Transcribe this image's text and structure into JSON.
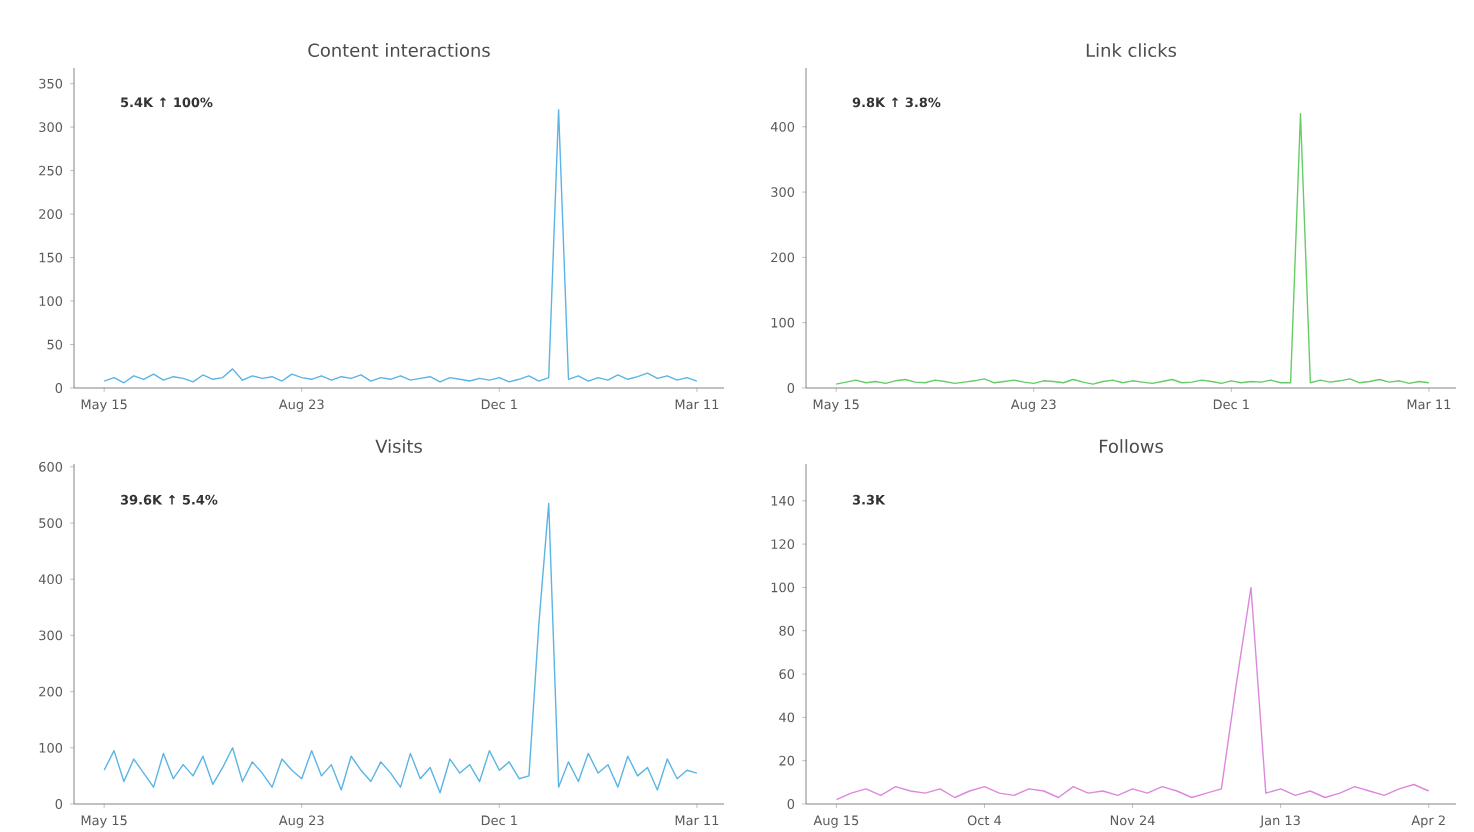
{
  "chart_data": [
    {
      "type": "line",
      "title": "Content interactions",
      "annotations": [
        "5.4K ↑ 100%"
      ],
      "color": "#5ab4e5",
      "ylim": [
        0,
        368
      ],
      "yticks": [
        0,
        50,
        100,
        150,
        200,
        250,
        300,
        350
      ],
      "categories": [
        "May 15",
        null,
        null,
        null,
        null,
        null,
        null,
        null,
        null,
        null,
        null,
        null,
        null,
        null,
        null,
        null,
        null,
        null,
        null,
        null,
        "Aug 23",
        null,
        null,
        null,
        null,
        null,
        null,
        null,
        null,
        null,
        null,
        null,
        null,
        null,
        null,
        null,
        null,
        null,
        null,
        null,
        "Dec 1",
        null,
        null,
        null,
        null,
        null,
        null,
        null,
        null,
        null,
        null,
        null,
        null,
        null,
        null,
        null,
        null,
        null,
        null,
        null,
        "Mar 11"
      ],
      "values": [
        8,
        12,
        6,
        14,
        10,
        16,
        9,
        13,
        11,
        7,
        15,
        10,
        12,
        22,
        9,
        14,
        11,
        13,
        8,
        16,
        12,
        10,
        14,
        9,
        13,
        11,
        15,
        8,
        12,
        10,
        14,
        9,
        11,
        13,
        7,
        12,
        10,
        8,
        11,
        9,
        12,
        7,
        10,
        14,
        8,
        12,
        320,
        10,
        14,
        8,
        12,
        9,
        15,
        10,
        13,
        17,
        11,
        14,
        9,
        12,
        8
      ]
    },
    {
      "type": "line",
      "title": "Link clicks",
      "annotations": [
        "9.8K ↑ 3.8%"
      ],
      "color": "#66cc66",
      "ylim": [
        0,
        490
      ],
      "yticks": [
        0,
        100,
        200,
        300,
        400
      ],
      "categories": [
        "May 15",
        null,
        null,
        null,
        null,
        null,
        null,
        null,
        null,
        null,
        null,
        null,
        null,
        null,
        null,
        null,
        null,
        null,
        null,
        null,
        "Aug 23",
        null,
        null,
        null,
        null,
        null,
        null,
        null,
        null,
        null,
        null,
        null,
        null,
        null,
        null,
        null,
        null,
        null,
        null,
        null,
        "Dec 1",
        null,
        null,
        null,
        null,
        null,
        null,
        null,
        null,
        null,
        null,
        null,
        null,
        null,
        null,
        null,
        null,
        null,
        null,
        null,
        "Mar 11"
      ],
      "values": [
        6,
        9,
        12,
        8,
        10,
        7,
        11,
        13,
        9,
        8,
        12,
        10,
        7,
        9,
        11,
        14,
        8,
        10,
        12,
        9,
        7,
        11,
        10,
        8,
        13,
        9,
        6,
        10,
        12,
        8,
        11,
        9,
        7,
        10,
        13,
        8,
        9,
        12,
        10,
        7,
        11,
        8,
        10,
        9,
        12,
        8,
        8,
        420,
        8,
        12,
        9,
        11,
        14,
        8,
        10,
        13,
        9,
        11,
        7,
        10,
        8
      ]
    },
    {
      "type": "line",
      "title": "Visits",
      "annotations": [
        "39.6K ↑ 5.4%"
      ],
      "color": "#5ab4e5",
      "ylim": [
        0,
        605
      ],
      "yticks": [
        0,
        100,
        200,
        300,
        400,
        500,
        600
      ],
      "categories": [
        "May 15",
        null,
        null,
        null,
        null,
        null,
        null,
        null,
        null,
        null,
        null,
        null,
        null,
        null,
        null,
        null,
        null,
        null,
        null,
        null,
        "Aug 23",
        null,
        null,
        null,
        null,
        null,
        null,
        null,
        null,
        null,
        null,
        null,
        null,
        null,
        null,
        null,
        null,
        null,
        null,
        null,
        "Dec 1",
        null,
        null,
        null,
        null,
        null,
        null,
        null,
        null,
        null,
        null,
        null,
        null,
        null,
        null,
        null,
        null,
        null,
        null,
        null,
        "Mar 11"
      ],
      "values": [
        60,
        95,
        40,
        80,
        55,
        30,
        90,
        45,
        70,
        50,
        85,
        35,
        65,
        100,
        40,
        75,
        55,
        30,
        80,
        60,
        45,
        95,
        50,
        70,
        25,
        85,
        60,
        40,
        75,
        55,
        30,
        90,
        45,
        65,
        20,
        80,
        55,
        70,
        40,
        95,
        60,
        75,
        45,
        50,
        320,
        535,
        30,
        75,
        40,
        90,
        55,
        70,
        30,
        85,
        50,
        65,
        25,
        80,
        45,
        60,
        55
      ]
    },
    {
      "type": "line",
      "title": "Follows",
      "annotations": [
        "3.3K"
      ],
      "color": "#dd88dd",
      "ylim": [
        0,
        157
      ],
      "yticks": [
        0,
        20,
        40,
        60,
        80,
        100,
        120,
        140
      ],
      "categories": [
        "Aug 15",
        null,
        null,
        null,
        null,
        null,
        null,
        null,
        null,
        null,
        "Oct 4",
        null,
        null,
        null,
        null,
        null,
        null,
        null,
        null,
        null,
        "Nov 24",
        null,
        null,
        null,
        null,
        null,
        null,
        null,
        null,
        null,
        "Jan 13",
        null,
        null,
        null,
        null,
        null,
        null,
        null,
        null,
        null,
        "Apr 2"
      ],
      "values": [
        2,
        5,
        7,
        4,
        8,
        6,
        5,
        7,
        3,
        6,
        8,
        5,
        4,
        7,
        6,
        3,
        8,
        5,
        6,
        4,
        7,
        5,
        8,
        6,
        3,
        5,
        7,
        55,
        100,
        5,
        7,
        4,
        6,
        3,
        5,
        8,
        6,
        4,
        7,
        9,
        6
      ]
    }
  ]
}
